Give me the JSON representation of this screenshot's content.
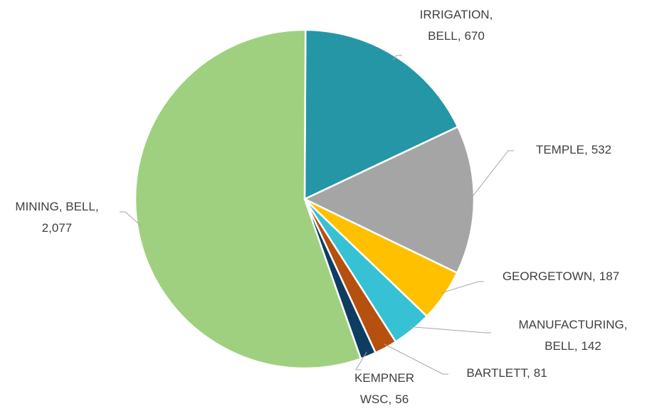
{
  "chart_data": {
    "type": "pie",
    "categories": [
      "IRRIGATION, BELL,",
      "TEMPLE,",
      "GEORGETOWN,",
      "MANUFACTURING, BELL,",
      "BARTLETT,",
      "KEMPNER WSC,",
      "MINING, BELL,"
    ],
    "values": [
      670,
      532,
      187,
      142,
      81,
      56,
      2077
    ],
    "value_labels": [
      "670",
      "532",
      "187",
      "142",
      "81",
      "56",
      "2,077"
    ],
    "colors": [
      "#2596a5",
      "#a5a5a5",
      "#ffc000",
      "#36c2d4",
      "#b5500f",
      "#0e3d62",
      "#9fd07f"
    ]
  }
}
